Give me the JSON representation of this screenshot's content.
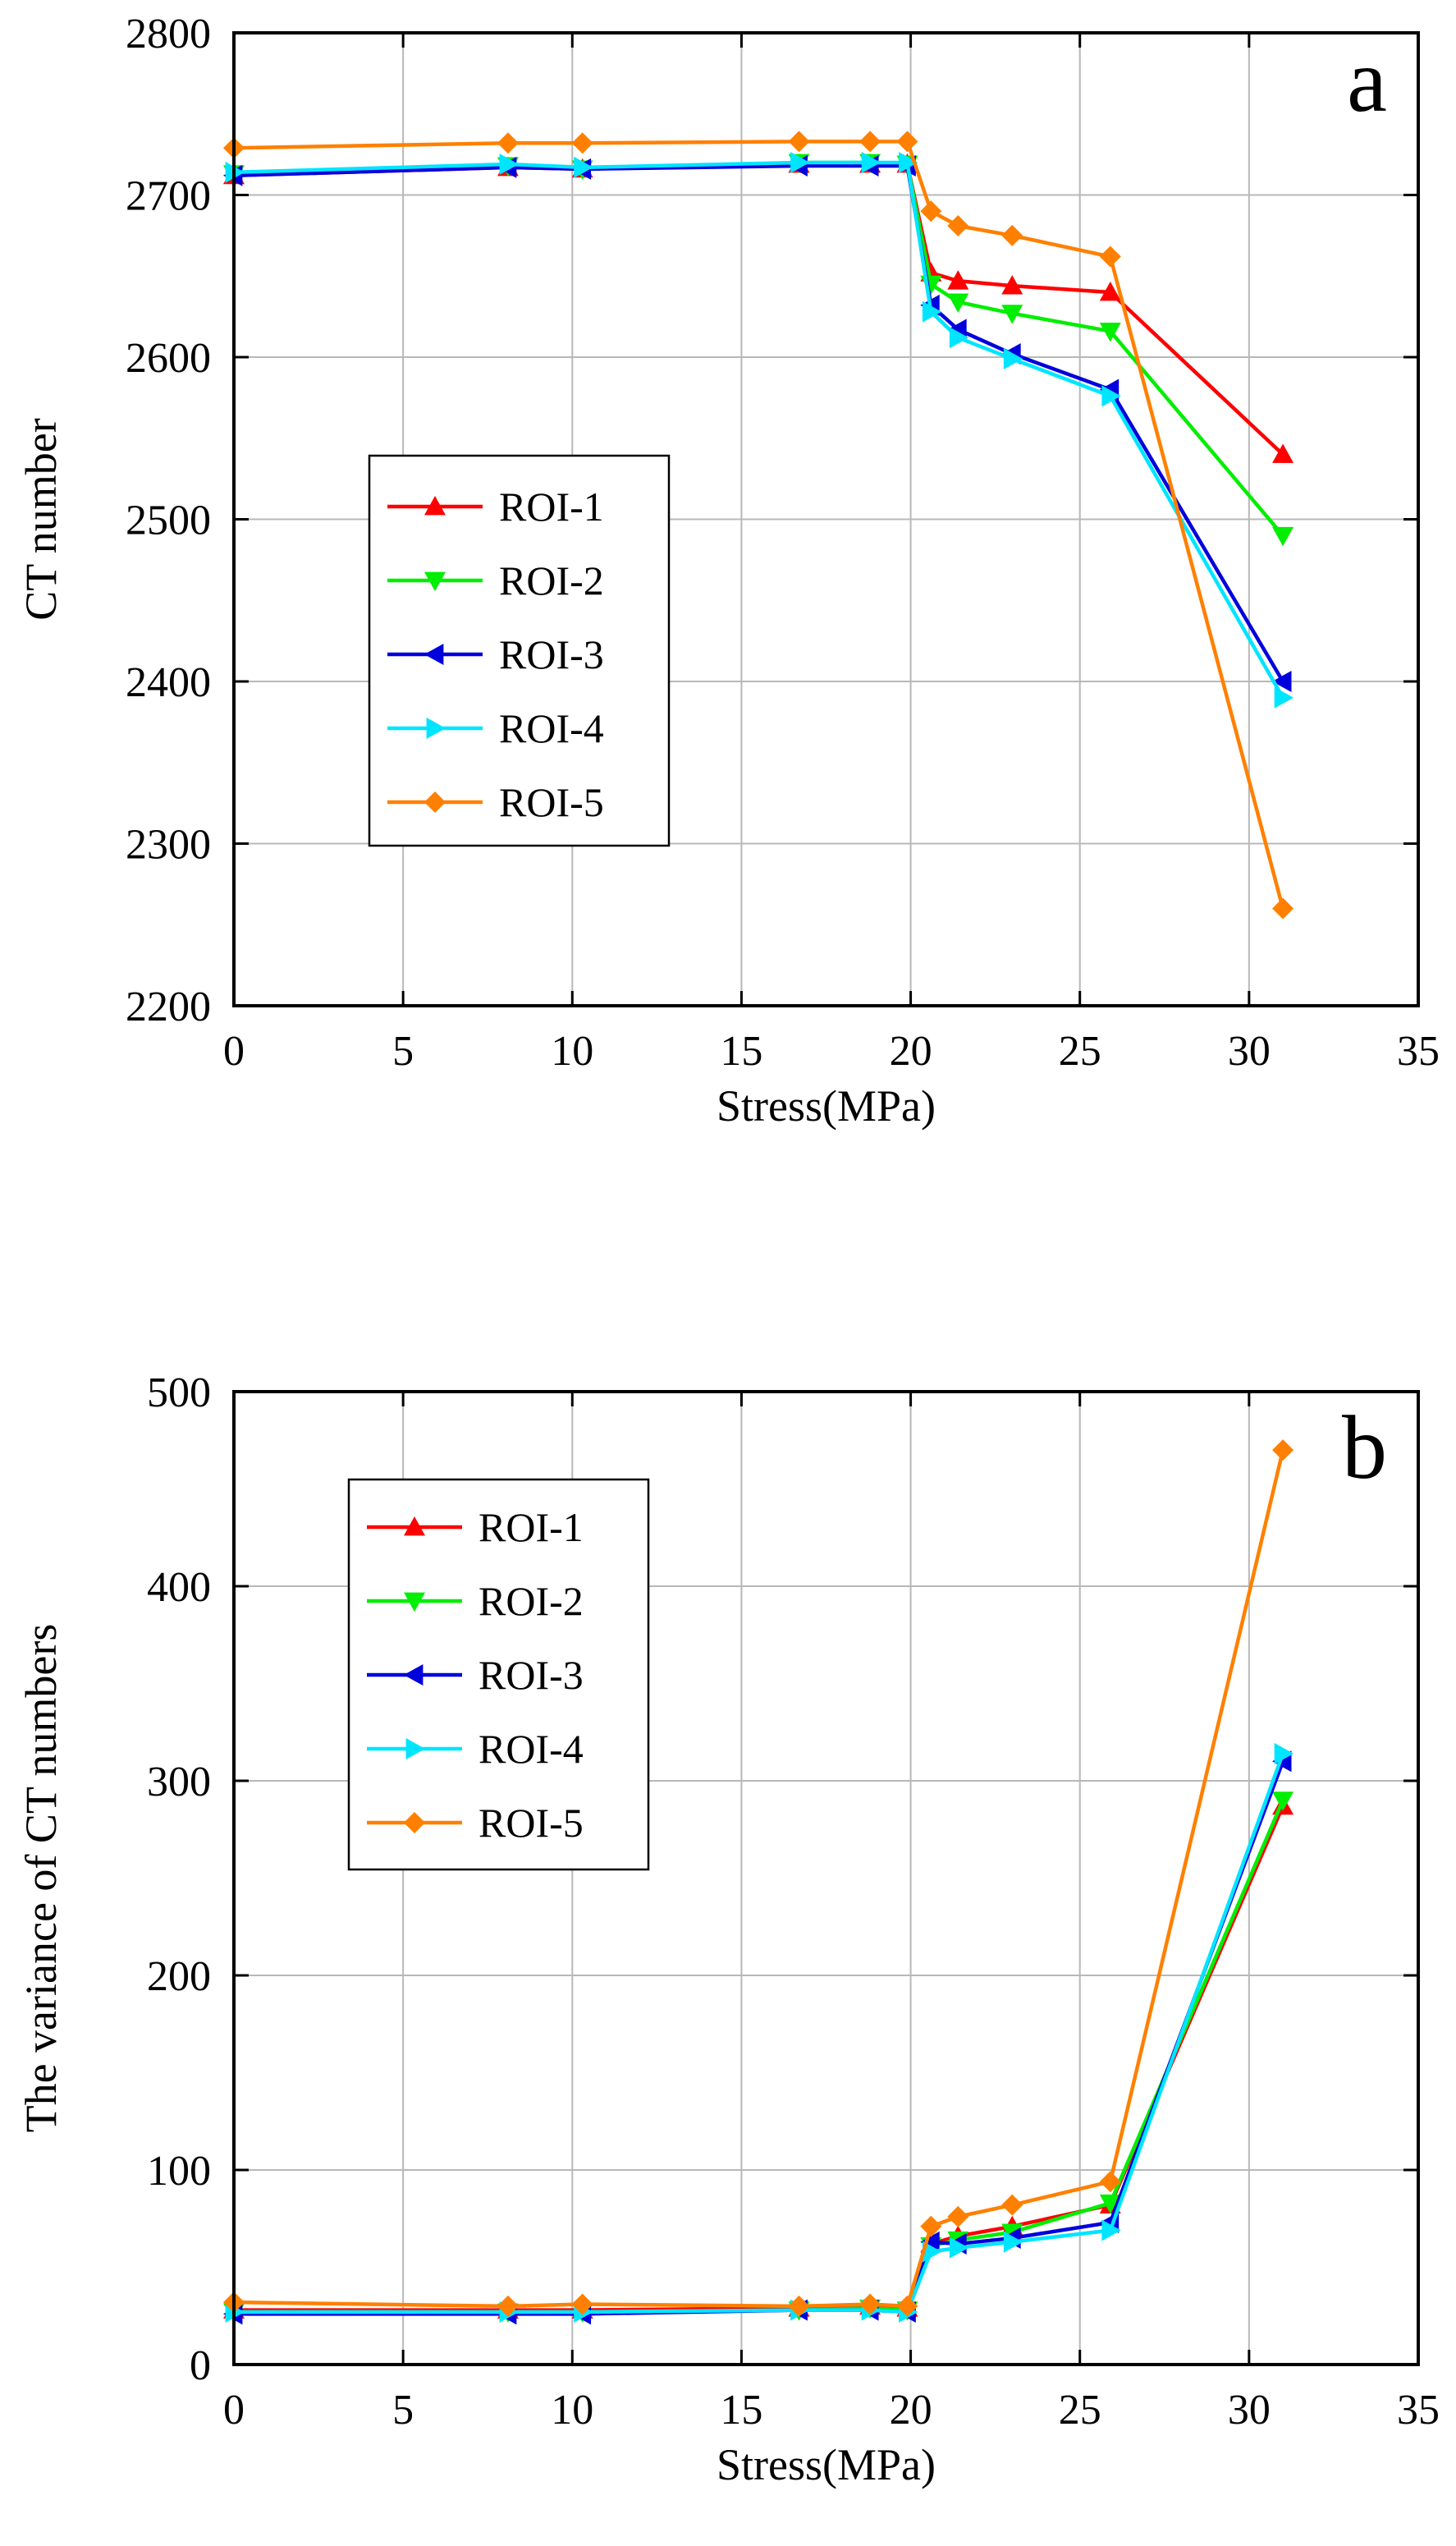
{
  "chart_data": [
    {
      "type": "line",
      "panel_label": "a",
      "xlabel": "Stress(MPa)",
      "ylabel": "CT number",
      "xlim": [
        0,
        35
      ],
      "ylim": [
        2200,
        2800
      ],
      "xticks": [
        0,
        5,
        10,
        15,
        20,
        25,
        30,
        35
      ],
      "yticks": [
        2200,
        2300,
        2400,
        2500,
        2600,
        2700,
        2800
      ],
      "grid": true,
      "legend_position": "center-left",
      "x": [
        0,
        8.1,
        10.3,
        16.7,
        18.8,
        19.9,
        20.6,
        21.4,
        23.0,
        25.9,
        31.0
      ],
      "series": [
        {
          "name": "ROI-1",
          "color": "#ff0000",
          "marker": "triangle-up",
          "values": [
            2712,
            2717,
            2716,
            2719,
            2719,
            2719,
            2652,
            2647,
            2644,
            2640,
            2540
          ]
        },
        {
          "name": "ROI-2",
          "color": "#00ee00",
          "marker": "triangle-down",
          "values": [
            2713,
            2718,
            2716,
            2720,
            2720,
            2719,
            2645,
            2634,
            2627,
            2616,
            2490
          ]
        },
        {
          "name": "ROI-3",
          "color": "#0000dd",
          "marker": "triangle-left",
          "values": [
            2712,
            2717,
            2716,
            2718,
            2718,
            2718,
            2632,
            2617,
            2602,
            2580,
            2400
          ]
        },
        {
          "name": "ROI-4",
          "color": "#00e5ff",
          "marker": "triangle-right",
          "values": [
            2714,
            2719,
            2717,
            2720,
            2720,
            2720,
            2628,
            2612,
            2599,
            2576,
            2390
          ]
        },
        {
          "name": "ROI-5",
          "color": "#ff8000",
          "marker": "diamond",
          "values": [
            2729,
            2732,
            2732,
            2733,
            2733,
            2733,
            2690,
            2681,
            2675,
            2662,
            2260
          ]
        }
      ]
    },
    {
      "type": "line",
      "panel_label": "b",
      "xlabel": "Stress(MPa)",
      "ylabel": "The variance of CT numbers",
      "xlim": [
        0,
        35
      ],
      "ylim": [
        0,
        500
      ],
      "xticks": [
        0,
        5,
        10,
        15,
        20,
        25,
        30,
        35
      ],
      "yticks": [
        0,
        100,
        200,
        300,
        400,
        500
      ],
      "grid": true,
      "legend_position": "top-left",
      "x": [
        0,
        8.1,
        10.3,
        16.7,
        18.8,
        19.9,
        20.6,
        21.4,
        23.0,
        25.9,
        31.0
      ],
      "series": [
        {
          "name": "ROI-1",
          "color": "#ff0000",
          "marker": "triangle-up",
          "values": [
            28,
            28,
            28,
            29,
            30,
            29,
            62,
            66,
            71,
            82,
            287
          ]
        },
        {
          "name": "ROI-2",
          "color": "#00ee00",
          "marker": "triangle-down",
          "values": [
            27,
            27,
            27,
            28,
            29,
            28,
            61,
            64,
            68,
            83,
            290
          ]
        },
        {
          "name": "ROI-3",
          "color": "#0000dd",
          "marker": "triangle-left",
          "values": [
            26,
            26,
            26,
            28,
            28,
            27,
            63,
            62,
            65,
            73,
            310
          ]
        },
        {
          "name": "ROI-4",
          "color": "#00e5ff",
          "marker": "triangle-right",
          "values": [
            27,
            27,
            27,
            28,
            28,
            27,
            58,
            60,
            63,
            69,
            314
          ]
        },
        {
          "name": "ROI-5",
          "color": "#ff8000",
          "marker": "diamond",
          "values": [
            32,
            30,
            31,
            30,
            31,
            30,
            71,
            76,
            82,
            94,
            470
          ]
        }
      ]
    }
  ]
}
